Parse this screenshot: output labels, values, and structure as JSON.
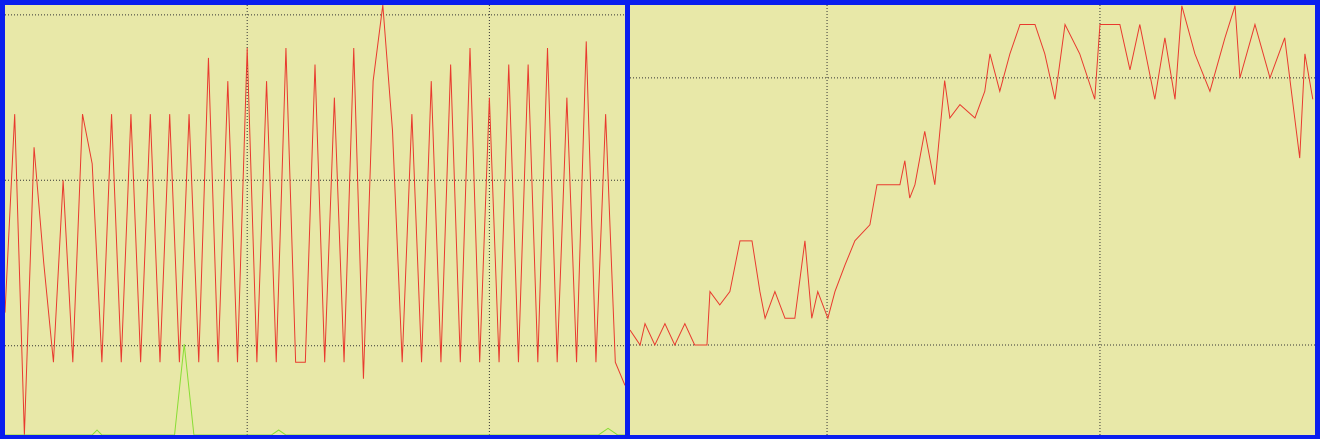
{
  "chart_data": [
    {
      "type": "line",
      "xlim": [
        0,
        256
      ],
      "ylim": [
        -27,
        103
      ],
      "xticks": [
        100,
        200
      ],
      "yticks": [
        0,
        50,
        100
      ],
      "grid": true,
      "series": [
        {
          "color": "#e83a2e",
          "x": [
            0,
            4,
            8,
            12,
            16,
            20,
            24,
            28,
            32,
            36,
            40,
            44,
            48,
            52,
            56,
            60,
            64,
            68,
            72,
            76,
            80,
            84,
            88,
            92,
            96,
            100,
            104,
            108,
            112,
            116,
            120,
            124,
            128,
            132,
            136,
            140,
            144,
            148,
            152,
            156,
            160,
            164,
            168,
            172,
            176,
            180,
            184,
            188,
            192,
            196,
            200,
            204,
            208,
            212,
            216,
            220,
            224,
            228,
            232,
            236,
            240,
            244,
            248,
            252,
            256
          ],
          "values": [
            10,
            70,
            -27,
            60,
            25,
            -5,
            50,
            -5,
            70,
            55,
            -5,
            70,
            -5,
            70,
            -5,
            70,
            -5,
            70,
            -5,
            70,
            -5,
            87,
            -5,
            80,
            -5,
            90,
            -5,
            80,
            -5,
            90,
            -5,
            -5,
            85,
            -5,
            75,
            -5,
            90,
            -10,
            80,
            103,
            65,
            -5,
            70,
            -5,
            80,
            -5,
            85,
            -5,
            90,
            -5,
            75,
            -5,
            85,
            -5,
            85,
            -5,
            90,
            -5,
            75,
            -5,
            92,
            -5,
            70,
            -5,
            -12
          ]
        },
        {
          "color": "#88dd33",
          "x": [
            0,
            36,
            38,
            40,
            70,
            74,
            78,
            110,
            113,
            116,
            245,
            249,
            253,
            256
          ],
          "values": [
            -27,
            -27,
            -25.5,
            -27,
            -27,
            0.5,
            -27,
            -27,
            -25.5,
            -27,
            -27,
            -25,
            -27,
            -27
          ]
        }
      ]
    },
    {
      "type": "line",
      "xlim": [
        27.8,
        278.8
      ],
      "ylim": [
        -33.7,
        127.3
      ],
      "xticks": [
        100,
        200
      ],
      "yticks": [
        0,
        100
      ],
      "grid": true,
      "series": [
        {
          "color": "#e83a2e",
          "x": [
            27.8,
            31.5,
            33.3,
            36.9,
            40.6,
            44.2,
            47.9,
            51.5,
            56,
            57.1,
            60.7,
            64.4,
            68.1,
            72.5,
            75.4,
            77.3,
            80.9,
            84.6,
            88.2,
            91.9,
            94.4,
            96.6,
            100.3,
            102.9,
            106.6,
            110.2,
            115.7,
            118.3,
            126.7,
            128.5,
            130.3,
            132.2,
            135.8,
            139.5,
            143.1,
            145,
            148.7,
            154.2,
            157.8,
            159.7,
            163.3,
            167,
            170.7,
            176.2,
            179.8,
            183.5,
            187.2,
            192.6,
            198.1,
            200,
            207.3,
            211,
            214.6,
            220.1,
            223.8,
            227.5,
            230,
            234.8,
            240.3,
            245.8,
            249.5,
            251.3,
            256.8,
            262.3,
            267.7,
            273.2,
            275.1,
            278
          ],
          "values": [
            5.6,
            0,
            8,
            0,
            8,
            0,
            8,
            0,
            0,
            20,
            15,
            20,
            39,
            39,
            20,
            10,
            20,
            10,
            10,
            39,
            10,
            20,
            10,
            20,
            30,
            39,
            45,
            60,
            60,
            69,
            55,
            60,
            80,
            60,
            99,
            85,
            90,
            85,
            95,
            109,
            95,
            109,
            120,
            120,
            109,
            92,
            120,
            109,
            92,
            120,
            120,
            103,
            120,
            92,
            115,
            92,
            127,
            109,
            95,
            115,
            127,
            100,
            120,
            100,
            115,
            70,
            109,
            92
          ]
        }
      ]
    }
  ]
}
